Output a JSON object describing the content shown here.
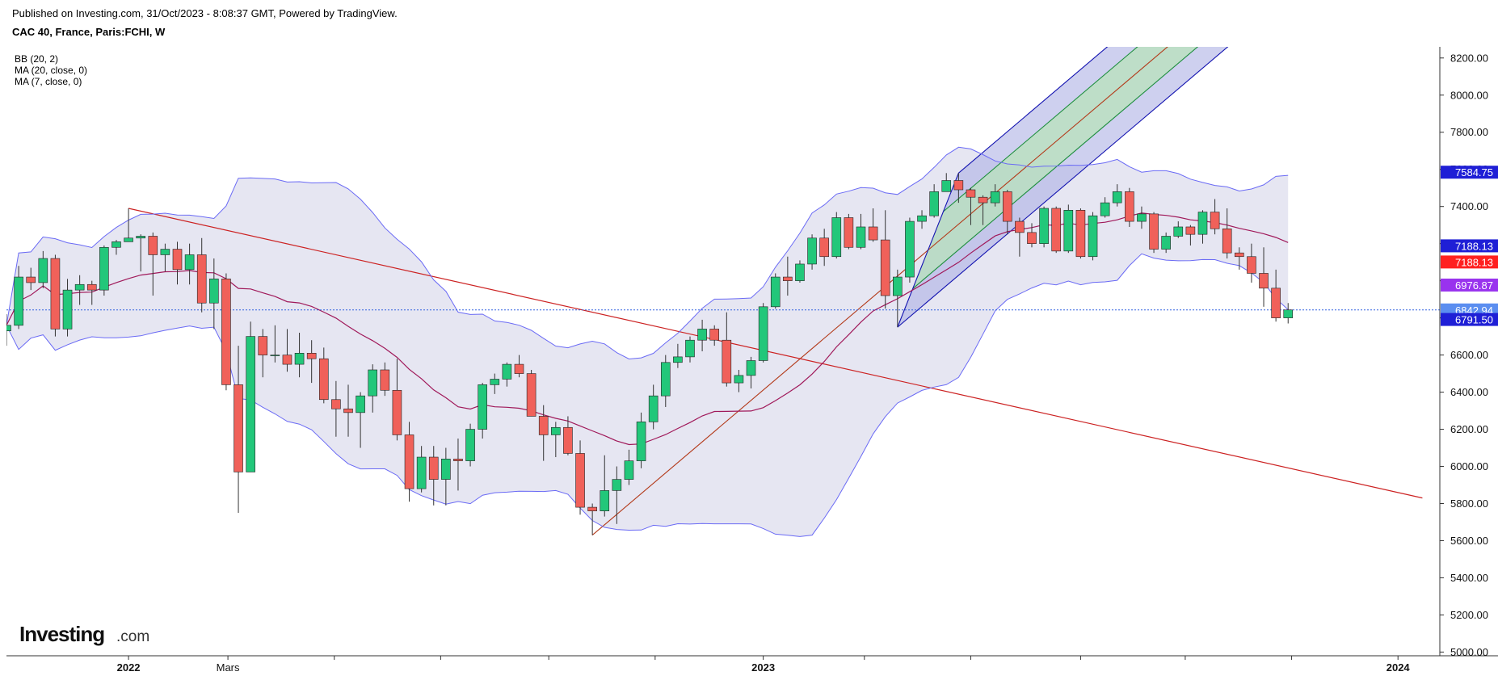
{
  "header": {
    "published": "Published on Investing.com, 31/Oct/2023 - 8:08:37 GMT, Powered by TradingView.",
    "symbol": "CAC 40, France, Paris:FCHI, W"
  },
  "indicators": [
    "BB (20, 2)",
    "MA (20, close, 0)",
    "MA (7, close, 0)"
  ],
  "logo": {
    "main": "Investing",
    "suffix": ".com"
  },
  "chart_data": {
    "type": "candlestick",
    "title": "CAC 40, France, Paris:FCHI, W",
    "y_axis": {
      "ticks": [
        5000,
        5200,
        5400,
        5600,
        5800,
        6000,
        6200,
        6400,
        6600,
        6800,
        7000,
        7200,
        7400,
        7600,
        7800,
        8000,
        8200
      ],
      "tick_labels": [
        "5000.00",
        "5200.00",
        "5400.00",
        "5600.00",
        "5800.00",
        "6000.00",
        "6200.00",
        "6400.00",
        "6600.00",
        "",
        "",
        "",
        "7400.00",
        "7600.00",
        "7800.00",
        "8000.00",
        "8200.00"
      ],
      "range": [
        4980,
        8260
      ]
    },
    "x_axis": {
      "range": [
        "2021-10-25",
        "2024-01-25"
      ],
      "ticks": [
        {
          "date": "2022-01-03",
          "label": "2022"
        },
        {
          "date": "2022-03-01",
          "label": "Mars"
        },
        {
          "date": "2022-05-01",
          "label": ""
        },
        {
          "date": "2022-07-01",
          "label": ""
        },
        {
          "date": "2022-09-01",
          "label": ""
        },
        {
          "date": "2022-11-01",
          "label": ""
        },
        {
          "date": "2023-01-02",
          "label": "2023"
        },
        {
          "date": "2023-03-01",
          "label": ""
        },
        {
          "date": "2023-05-01",
          "label": ""
        },
        {
          "date": "2023-07-03",
          "label": ""
        },
        {
          "date": "2023-09-01",
          "label": ""
        },
        {
          "date": "2023-11-01",
          "label": ""
        },
        {
          "date": "2024-01-01",
          "label": "2024"
        }
      ]
    },
    "price_labels": [
      {
        "value": 7584.75,
        "text": "7584.75",
        "color": "#1f1fd6"
      },
      {
        "value": 7188.13,
        "text": "7188.13",
        "color": "#1f1fd6"
      },
      {
        "value": 7188.13,
        "text": "7188.13",
        "color": "#ff2020",
        "offset": 1
      },
      {
        "value": 6976.87,
        "text": "6976.87",
        "color": "#9933ee"
      },
      {
        "value": 6842.94,
        "text": "6842.94",
        "color": "#5b8ef0"
      },
      {
        "value": 6791.5,
        "text": "6791.50",
        "color": "#1f1fd6"
      }
    ],
    "current_price": 6842.94,
    "colors": {
      "up": "#22c77a",
      "down": "#f0615a",
      "wick": "#333333",
      "bb_line": "#6a6af5",
      "bb_fill": "#dddded",
      "ma20": "#a0195a",
      "ma7": "#4a4ad0",
      "fork_outer_fill": "#aeb0e4",
      "fork_inner_fill": "#b8e4b8",
      "fork_outer_line": "#1212b0",
      "fork_inner_line": "#1f8f3f",
      "fork_median": "#b33a1a",
      "trendline": "#cc2222",
      "price_line": "#3060e0"
    },
    "trendline": [
      [
        "2022-01-03",
        7390
      ],
      [
        "2024-01-15",
        5830
      ]
    ],
    "pitchfork": {
      "p1": [
        "2022-09-26",
        5630
      ],
      "p2": [
        "2023-04-24",
        7580
      ],
      "p3": [
        "2023-03-20",
        6750
      ]
    },
    "candles": [
      [
        "2021-10-25",
        6730,
        6820,
        6650,
        6760
      ],
      [
        "2021-11-01",
        6760,
        7080,
        6740,
        7020
      ],
      [
        "2021-11-08",
        7020,
        7070,
        6950,
        6990
      ],
      [
        "2021-11-15",
        6990,
        7160,
        6960,
        7120
      ],
      [
        "2021-11-22",
        7120,
        7140,
        6700,
        6740
      ],
      [
        "2021-11-29",
        6740,
        7010,
        6700,
        6950
      ],
      [
        "2021-12-06",
        6950,
        7030,
        6870,
        6980
      ],
      [
        "2021-12-13",
        6980,
        7000,
        6870,
        6950
      ],
      [
        "2021-12-20",
        6950,
        7190,
        6920,
        7180
      ],
      [
        "2021-12-27",
        7180,
        7220,
        7140,
        7210
      ],
      [
        "2022-01-03",
        7210,
        7390,
        7210,
        7230
      ],
      [
        "2022-01-10",
        7230,
        7250,
        7050,
        7240
      ],
      [
        "2022-01-17",
        7240,
        7260,
        6920,
        7140
      ],
      [
        "2022-01-24",
        7140,
        7200,
        7050,
        7170
      ],
      [
        "2022-01-31",
        7170,
        7210,
        6980,
        7060
      ],
      [
        "2022-02-07",
        7060,
        7200,
        6980,
        7140
      ],
      [
        "2022-02-14",
        7140,
        7230,
        6830,
        6880
      ],
      [
        "2022-02-21",
        6880,
        7120,
        6740,
        7010
      ],
      [
        "2022-02-28",
        7010,
        7040,
        6410,
        6440
      ],
      [
        "2022-03-07",
        6440,
        6650,
        5750,
        5970
      ],
      [
        "2022-03-14",
        5970,
        6780,
        5970,
        6700
      ],
      [
        "2022-03-21",
        6700,
        6740,
        6480,
        6600
      ],
      [
        "2022-03-28",
        6600,
        6760,
        6560,
        6600
      ],
      [
        "2022-04-04",
        6600,
        6740,
        6510,
        6550
      ],
      [
        "2022-04-11",
        6550,
        6720,
        6480,
        6610
      ],
      [
        "2022-04-18",
        6610,
        6680,
        6450,
        6580
      ],
      [
        "2022-04-25",
        6580,
        6640,
        6340,
        6360
      ],
      [
        "2022-05-02",
        6360,
        6460,
        6160,
        6310
      ],
      [
        "2022-05-09",
        6310,
        6440,
        6160,
        6290
      ],
      [
        "2022-05-16",
        6290,
        6400,
        6100,
        6380
      ],
      [
        "2022-05-23",
        6380,
        6550,
        6290,
        6520
      ],
      [
        "2022-05-30",
        6520,
        6560,
        6380,
        6410
      ],
      [
        "2022-06-06",
        6410,
        6580,
        6140,
        6170
      ],
      [
        "2022-06-13",
        6170,
        6240,
        5810,
        5880
      ],
      [
        "2022-06-20",
        5880,
        6110,
        5860,
        6050
      ],
      [
        "2022-06-27",
        6050,
        6110,
        5790,
        5930
      ],
      [
        "2022-07-04",
        5930,
        6100,
        5790,
        6040
      ],
      [
        "2022-07-11",
        6040,
        6150,
        5870,
        6030
      ],
      [
        "2022-07-18",
        6030,
        6230,
        6000,
        6200
      ],
      [
        "2022-07-25",
        6200,
        6450,
        6150,
        6440
      ],
      [
        "2022-08-01",
        6440,
        6500,
        6390,
        6470
      ],
      [
        "2022-08-08",
        6470,
        6560,
        6430,
        6550
      ],
      [
        "2022-08-15",
        6550,
        6600,
        6480,
        6500
      ],
      [
        "2022-08-22",
        6500,
        6520,
        6270,
        6270
      ],
      [
        "2022-08-29",
        6270,
        6330,
        6030,
        6170
      ],
      [
        "2022-09-05",
        6170,
        6240,
        6050,
        6210
      ],
      [
        "2022-09-12",
        6210,
        6270,
        6060,
        6070
      ],
      [
        "2022-09-19",
        6070,
        6140,
        5740,
        5780
      ],
      [
        "2022-09-26",
        5780,
        5800,
        5630,
        5760
      ],
      [
        "2022-10-03",
        5760,
        6060,
        5730,
        5870
      ],
      [
        "2022-10-10",
        5870,
        6000,
        5690,
        5930
      ],
      [
        "2022-10-17",
        5930,
        6090,
        5900,
        6030
      ],
      [
        "2022-10-24",
        6030,
        6290,
        5990,
        6240
      ],
      [
        "2022-10-31",
        6240,
        6440,
        6200,
        6380
      ],
      [
        "2022-11-07",
        6380,
        6600,
        6320,
        6560
      ],
      [
        "2022-11-14",
        6560,
        6660,
        6530,
        6590
      ],
      [
        "2022-11-21",
        6590,
        6700,
        6560,
        6680
      ],
      [
        "2022-11-28",
        6680,
        6790,
        6620,
        6740
      ],
      [
        "2022-12-05",
        6740,
        6760,
        6650,
        6680
      ],
      [
        "2022-12-12",
        6680,
        6830,
        6430,
        6450
      ],
      [
        "2022-12-19",
        6450,
        6520,
        6400,
        6490
      ],
      [
        "2022-12-26",
        6490,
        6590,
        6420,
        6570
      ],
      [
        "2023-01-02",
        6570,
        6880,
        6560,
        6860
      ],
      [
        "2023-01-09",
        6860,
        7040,
        6850,
        7020
      ],
      [
        "2023-01-16",
        7020,
        7130,
        6920,
        7000
      ],
      [
        "2023-01-23",
        7000,
        7110,
        6990,
        7090
      ],
      [
        "2023-01-30",
        7090,
        7250,
        7060,
        7230
      ],
      [
        "2023-02-06",
        7230,
        7280,
        7080,
        7130
      ],
      [
        "2023-02-13",
        7130,
        7370,
        7120,
        7340
      ],
      [
        "2023-02-20",
        7340,
        7360,
        7170,
        7180
      ],
      [
        "2023-02-27",
        7180,
        7360,
        7170,
        7290
      ],
      [
        "2023-03-06",
        7290,
        7390,
        7210,
        7220
      ],
      [
        "2023-03-13",
        7220,
        7380,
        6850,
        6920
      ],
      [
        "2023-03-20",
        6920,
        7060,
        6750,
        7020
      ],
      [
        "2023-03-27",
        7020,
        7340,
        6990,
        7320
      ],
      [
        "2023-04-03",
        7320,
        7380,
        7280,
        7350
      ],
      [
        "2023-04-10",
        7350,
        7520,
        7340,
        7480
      ],
      [
        "2023-04-17",
        7480,
        7580,
        7480,
        7540
      ],
      [
        "2023-04-24",
        7540,
        7580,
        7420,
        7490
      ],
      [
        "2023-05-01",
        7490,
        7500,
        7300,
        7450
      ],
      [
        "2023-05-08",
        7450,
        7460,
        7300,
        7420
      ],
      [
        "2023-05-15",
        7420,
        7520,
        7400,
        7480
      ],
      [
        "2023-05-22",
        7480,
        7490,
        7250,
        7320
      ],
      [
        "2023-05-29",
        7320,
        7340,
        7130,
        7260
      ],
      [
        "2023-06-05",
        7260,
        7310,
        7180,
        7200
      ],
      [
        "2023-06-12",
        7200,
        7400,
        7180,
        7390
      ],
      [
        "2023-06-19",
        7390,
        7400,
        7150,
        7160
      ],
      [
        "2023-06-26",
        7160,
        7410,
        7150,
        7380
      ],
      [
        "2023-07-03",
        7380,
        7390,
        7120,
        7130
      ],
      [
        "2023-07-10",
        7130,
        7370,
        7110,
        7350
      ],
      [
        "2023-07-17",
        7350,
        7450,
        7340,
        7420
      ],
      [
        "2023-07-24",
        7420,
        7520,
        7400,
        7480
      ],
      [
        "2023-07-31",
        7480,
        7500,
        7290,
        7320
      ],
      [
        "2023-08-07",
        7320,
        7400,
        7280,
        7360
      ],
      [
        "2023-08-14",
        7360,
        7370,
        7150,
        7170
      ],
      [
        "2023-08-21",
        7170,
        7260,
        7150,
        7240
      ],
      [
        "2023-08-28",
        7240,
        7320,
        7230,
        7290
      ],
      [
        "2023-09-04",
        7290,
        7300,
        7190,
        7250
      ],
      [
        "2023-09-11",
        7250,
        7380,
        7200,
        7370
      ],
      [
        "2023-09-18",
        7370,
        7440,
        7250,
        7280
      ],
      [
        "2023-09-25",
        7280,
        7390,
        7120,
        7150
      ],
      [
        "2023-10-02",
        7150,
        7180,
        7060,
        7130
      ],
      [
        "2023-10-09",
        7130,
        7200,
        6990,
        7040
      ],
      [
        "2023-10-16",
        7040,
        7180,
        6860,
        6960
      ],
      [
        "2023-10-23",
        6960,
        7060,
        6780,
        6800
      ],
      [
        "2023-10-30",
        6800,
        6880,
        6770,
        6843
      ]
    ]
  }
}
